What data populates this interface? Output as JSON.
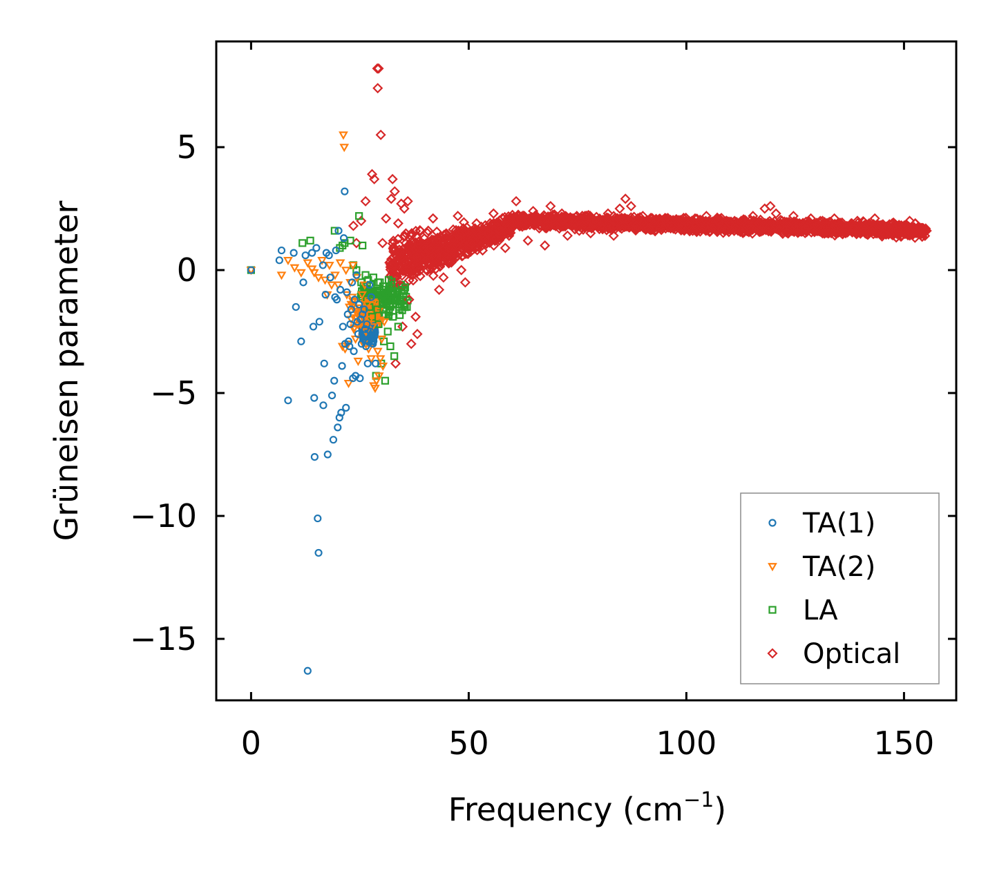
{
  "chart_data": {
    "type": "scatter",
    "title": "",
    "xlabel": "Frequency (cm",
    "xlabel_superscript": "−1",
    "xlabel_suffix": ")",
    "ylabel": "Grüneisen parameter",
    "xlim": [
      -8,
      162
    ],
    "ylim": [
      -17.5,
      9.3
    ],
    "x_ticks": [
      0,
      50,
      100,
      150
    ],
    "x_tick_labels": [
      "0",
      "50",
      "100",
      "150"
    ],
    "y_ticks": [
      5,
      0,
      -5,
      -10,
      -15
    ],
    "y_tick_labels": [
      "5",
      "0",
      "−5",
      "−10",
      "−15"
    ],
    "grid": false,
    "legend_position": "bottom-right",
    "series": [
      {
        "name": "TA(1)",
        "marker": "circle",
        "color": "#1f77b4",
        "points": [
          [
            0,
            0
          ],
          [
            6.5,
            0.4
          ],
          [
            7,
            0.8
          ],
          [
            8.5,
            -5.3
          ],
          [
            9.8,
            0.7
          ],
          [
            10.3,
            -1.5
          ],
          [
            11.5,
            -2.9
          ],
          [
            12,
            -0.5
          ],
          [
            12.5,
            0.6
          ],
          [
            13,
            -16.3
          ],
          [
            14,
            0.7
          ],
          [
            14.3,
            -2.3
          ],
          [
            14.5,
            -5.2
          ],
          [
            14.6,
            -7.6
          ],
          [
            15,
            0.9
          ],
          [
            15.3,
            -10.1
          ],
          [
            15.5,
            -11.5
          ],
          [
            15.7,
            -2.1
          ],
          [
            16.5,
            0.2
          ],
          [
            16.6,
            -5.5
          ],
          [
            16.8,
            -3.8
          ],
          [
            17.1,
            -1.0
          ],
          [
            17.3,
            0.7
          ],
          [
            17.6,
            -7.5
          ],
          [
            17.9,
            0.6
          ],
          [
            18.2,
            -0.3
          ],
          [
            18.6,
            -5.1
          ],
          [
            18.9,
            -6.9
          ],
          [
            19.1,
            -4.5
          ],
          [
            19.3,
            -1.1
          ],
          [
            19.5,
            0.8
          ],
          [
            19.7,
            -1.2
          ],
          [
            19.9,
            -6.4
          ],
          [
            20.1,
            1.6
          ],
          [
            20.3,
            -6.0
          ],
          [
            20.5,
            -0.8
          ],
          [
            20.7,
            -5.8
          ],
          [
            20.9,
            -3.9
          ],
          [
            21.1,
            -2.3
          ],
          [
            21.3,
            1.3
          ],
          [
            21.5,
            3.2
          ],
          [
            21.6,
            -3.0
          ],
          [
            21.8,
            -5.6
          ],
          [
            22,
            -0.9
          ],
          [
            22.2,
            -1.8
          ],
          [
            22.4,
            -2.9
          ],
          [
            22.6,
            -3.1
          ],
          [
            22.8,
            -2.2
          ],
          [
            23,
            -1.6
          ],
          [
            23.2,
            -0.5
          ],
          [
            23.4,
            -4.4
          ],
          [
            23.6,
            -3.3
          ],
          [
            23.8,
            -1.2
          ],
          [
            24,
            -4.3
          ],
          [
            24.2,
            -0.2
          ],
          [
            24.4,
            -2.1
          ],
          [
            24.6,
            -2.6
          ],
          [
            24.8,
            -1.4
          ],
          [
            25,
            -4.4
          ],
          [
            25.2,
            -2.0
          ],
          [
            25.4,
            -3.0
          ],
          [
            25.6,
            -1.8
          ],
          [
            25.8,
            -2.8
          ],
          [
            26,
            -1.6
          ],
          [
            26.2,
            -2.4
          ],
          [
            26.4,
            -3.1
          ],
          [
            26.6,
            -2.2
          ],
          [
            26.8,
            -3.8
          ],
          [
            27,
            -2.9
          ],
          [
            27.2,
            -0.6
          ],
          [
            27.4,
            -2.5
          ],
          [
            27.6,
            -1.1
          ],
          [
            27.8,
            -2.9
          ],
          [
            28,
            -3.0
          ],
          [
            28.3,
            -2.7
          ],
          [
            28.6,
            -3.8
          ]
        ]
      },
      {
        "name": "TA(2)",
        "marker": "triangle-down",
        "color": "#ff7f0e",
        "points": [
          [
            0,
            0
          ],
          [
            7,
            -0.2
          ],
          [
            8.5,
            0.4
          ],
          [
            10,
            0.1
          ],
          [
            11.5,
            -0.1
          ],
          [
            13,
            0.3
          ],
          [
            14,
            0.05
          ],
          [
            14.5,
            -0.1
          ],
          [
            15.5,
            -0.3
          ],
          [
            16.3,
            0.4
          ],
          [
            17,
            -0.4
          ],
          [
            17.5,
            -1.0
          ],
          [
            18,
            0.2
          ],
          [
            18.5,
            -0.6
          ],
          [
            19.3,
            -0.2
          ],
          [
            20,
            -0.6
          ],
          [
            20.5,
            0.3
          ],
          [
            21,
            -3.1
          ],
          [
            21.2,
            5.5
          ],
          [
            21.4,
            5.0
          ],
          [
            21.6,
            -3.2
          ],
          [
            21.8,
            0.0
          ],
          [
            22,
            -1.0
          ],
          [
            22.2,
            -3.0
          ],
          [
            22.4,
            -4.6
          ],
          [
            22.6,
            -1.5
          ],
          [
            22.8,
            -0.5
          ],
          [
            23,
            -2.0
          ],
          [
            23.2,
            -1.1
          ],
          [
            23.4,
            0.2
          ],
          [
            23.6,
            -2.4
          ],
          [
            23.8,
            -1.3
          ],
          [
            24,
            -2.8
          ],
          [
            24.3,
            -0.3
          ],
          [
            24.6,
            -3.7
          ],
          [
            24.9,
            -1.8
          ],
          [
            25.2,
            -2.2
          ],
          [
            25.5,
            -1.0
          ],
          [
            25.8,
            -3.0
          ],
          [
            26.1,
            -0.6
          ],
          [
            26.4,
            -2.5
          ],
          [
            26.7,
            -1.4
          ],
          [
            27,
            -3.2
          ],
          [
            27.3,
            -2.0
          ],
          [
            27.6,
            -3.6
          ],
          [
            27.9,
            -2.3
          ],
          [
            28.2,
            -4.7
          ],
          [
            28.5,
            -4.8
          ],
          [
            28.8,
            -4.5
          ],
          [
            29.1,
            -3.3
          ],
          [
            29.4,
            -4.3
          ],
          [
            29.7,
            -3.6
          ],
          [
            30,
            -2.8
          ],
          [
            30.3,
            -3.9
          ],
          [
            30.6,
            -2.1
          ]
        ]
      },
      {
        "name": "LA",
        "marker": "square",
        "color": "#2ca02c",
        "points": [
          [
            0,
            0
          ],
          [
            11.8,
            1.1
          ],
          [
            13.6,
            1.2
          ],
          [
            19.2,
            1.6
          ],
          [
            20.4,
            0.9
          ],
          [
            21,
            1.0
          ],
          [
            21.5,
            1.1
          ],
          [
            22.8,
            1.2
          ],
          [
            23.5,
            0.2
          ],
          [
            24.2,
            0.0
          ],
          [
            24.8,
            2.2
          ],
          [
            25.3,
            -0.5
          ],
          [
            25.6,
            1.0
          ],
          [
            26,
            -0.8
          ],
          [
            26.3,
            -0.2
          ],
          [
            26.6,
            -1.2
          ],
          [
            26.9,
            -0.4
          ],
          [
            27.2,
            -1.5
          ],
          [
            27.5,
            -0.6
          ],
          [
            27.8,
            -1.9
          ],
          [
            28.1,
            -0.3
          ],
          [
            28.4,
            -1.0
          ],
          [
            28.7,
            -4.3
          ],
          [
            29,
            -1.6
          ],
          [
            29.3,
            -2.2
          ],
          [
            29.6,
            -0.5
          ],
          [
            29.9,
            -3.8
          ],
          [
            30.2,
            -1.3
          ],
          [
            30.5,
            -2.9
          ],
          [
            30.8,
            -4.5
          ],
          [
            31.1,
            -0.9
          ],
          [
            31.4,
            -2.5
          ],
          [
            31.7,
            -1.7
          ],
          [
            32,
            -3.1
          ],
          [
            32.3,
            -0.6
          ],
          [
            32.6,
            -1.9
          ],
          [
            32.9,
            -3.5
          ],
          [
            33.2,
            -1.1
          ],
          [
            33.5,
            -0.9
          ],
          [
            33.8,
            -2.3
          ],
          [
            34.2,
            -1.4
          ],
          [
            34.6,
            -0.8
          ],
          [
            35,
            -1.2
          ],
          [
            35.4,
            -0.7
          ],
          [
            29.2,
            -0.5
          ],
          [
            30.4,
            -1.0
          ],
          [
            31.6,
            -0.4
          ],
          [
            27.1,
            -0.9
          ]
        ]
      },
      {
        "name": "Optical",
        "marker": "diamond",
        "color": "#d62728",
        "points": [
          [
            29,
            8.2
          ],
          [
            29.3,
            8.2
          ],
          [
            29.1,
            7.4
          ],
          [
            29.8,
            5.5
          ],
          [
            27.8,
            3.9
          ],
          [
            28.3,
            3.7
          ],
          [
            26.3,
            2.8
          ],
          [
            25.3,
            2.0
          ],
          [
            23.5,
            1.8
          ],
          [
            24.2,
            1.1
          ],
          [
            32.5,
            3.7
          ],
          [
            33,
            3.2
          ],
          [
            32.2,
            2.9
          ],
          [
            34.5,
            2.7
          ],
          [
            35.2,
            2.5
          ],
          [
            36,
            2.8
          ],
          [
            31,
            2.1
          ],
          [
            33.8,
            1.9
          ],
          [
            36.9,
            1.5
          ],
          [
            35.4,
            0.7
          ],
          [
            30.2,
            1.1
          ],
          [
            31.8,
            0.3
          ],
          [
            34.2,
            -0.6
          ],
          [
            36.3,
            -1.2
          ],
          [
            37.8,
            -1.9
          ],
          [
            38.2,
            -2.6
          ],
          [
            36.8,
            -3.0
          ],
          [
            33.2,
            -3.8
          ],
          [
            34.8,
            -2.3
          ],
          [
            37.2,
            -0.2
          ],
          [
            39.5,
            0.9
          ],
          [
            40.7,
            1.6
          ],
          [
            41.8,
            2.1
          ],
          [
            42.5,
            1.2
          ],
          [
            43.2,
            -0.8
          ],
          [
            44.2,
            -0.3
          ],
          [
            45.1,
            0.5
          ],
          [
            46.3,
            1.3
          ],
          [
            47.5,
            2.2
          ],
          [
            48.3,
            0.0
          ],
          [
            49.2,
            -0.5
          ],
          [
            50.5,
            1.1
          ],
          [
            51.8,
            1.9
          ],
          [
            53.2,
            0.8
          ],
          [
            54.5,
            1.5
          ],
          [
            55.7,
            2.3
          ],
          [
            57.1,
            1.6
          ],
          [
            58.4,
            0.9
          ],
          [
            59.6,
            2.1
          ],
          [
            60.9,
            2.8
          ],
          [
            62.3,
            1.9
          ],
          [
            63.6,
            1.2
          ],
          [
            64.8,
            2.4
          ],
          [
            66.2,
            1.7
          ],
          [
            67.5,
            1.0
          ],
          [
            68.8,
            2.6
          ],
          [
            70.1,
            1.8
          ],
          [
            71.4,
            2.3
          ],
          [
            72.7,
            1.4
          ],
          [
            74.1,
            2.1
          ],
          [
            75.4,
            1.6
          ],
          [
            76.7,
            2.2
          ],
          [
            78,
            1.5
          ],
          [
            79.4,
            2.0
          ],
          [
            80.7,
            1.7
          ],
          [
            82,
            2.3
          ],
          [
            83.3,
            1.4
          ],
          [
            84.7,
            2.5
          ],
          [
            86,
            2.9
          ],
          [
            87.3,
            2.6
          ],
          [
            88.6,
            1.8
          ],
          [
            90,
            2.2
          ],
          [
            91.3,
            1.7
          ],
          [
            92.6,
            2.0
          ],
          [
            94,
            1.9
          ],
          [
            95.3,
            2.1
          ],
          [
            96.6,
            1.8
          ],
          [
            98,
            1.9
          ],
          [
            99.3,
            2.0
          ],
          [
            100.6,
            1.8
          ],
          [
            102,
            2.1
          ],
          [
            103.3,
            1.9
          ],
          [
            104.6,
            2.2
          ],
          [
            106,
            1.7
          ],
          [
            107.3,
            2.0
          ],
          [
            108.6,
            1.8
          ],
          [
            110,
            1.9
          ],
          [
            111.3,
            1.7
          ],
          [
            112.6,
            2.0
          ],
          [
            114,
            1.8
          ],
          [
            115.3,
            2.2
          ],
          [
            116.6,
            1.9
          ],
          [
            118,
            2.5
          ],
          [
            119.3,
            2.6
          ],
          [
            120.6,
            2.3
          ],
          [
            122,
            2.0
          ],
          [
            123.3,
            1.5
          ],
          [
            124.6,
            2.2
          ],
          [
            126,
            1.9
          ],
          [
            127.3,
            1.7
          ],
          [
            128.6,
            2.1
          ],
          [
            130,
            1.8
          ],
          [
            131.3,
            2.0
          ],
          [
            132.6,
            1.6
          ],
          [
            134,
            2.1
          ],
          [
            135.3,
            1.8
          ],
          [
            136.6,
            1.5
          ],
          [
            138,
            1.9
          ],
          [
            139.3,
            2.0
          ],
          [
            140.6,
            1.7
          ],
          [
            142,
            1.9
          ],
          [
            143.3,
            2.1
          ],
          [
            144.6,
            1.8
          ],
          [
            146,
            1.7
          ],
          [
            147.3,
            1.9
          ],
          [
            148.6,
            1.6
          ],
          [
            150,
            1.8
          ],
          [
            151.3,
            2.0
          ],
          [
            152.6,
            1.9
          ],
          [
            154,
            1.7
          ],
          [
            155.2,
            1.6
          ]
        ]
      }
    ]
  }
}
